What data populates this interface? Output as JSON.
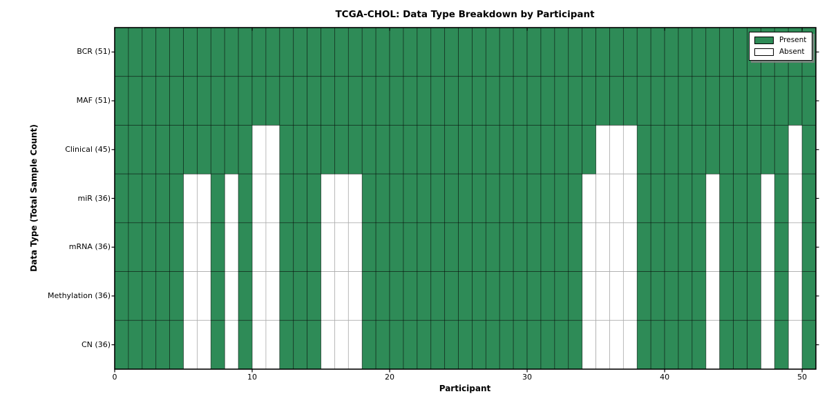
{
  "chart_data": {
    "type": "heatmap",
    "title": "TCGA-CHOL: Data Type Breakdown by Participant",
    "xlabel": "Participant",
    "ylabel": "Data Type (Total Sample Count)",
    "x_ticks": [
      0,
      10,
      20,
      30,
      40,
      50
    ],
    "x_range": [
      0,
      51
    ],
    "n_participants": 51,
    "grid": "per-cell borders",
    "legend_position": "upper right",
    "value_encoding": {
      "present": 1,
      "absent": 0
    },
    "rows": [
      {
        "label": "BCR (51)",
        "data_type": "BCR",
        "present_count": 51,
        "absent_participants": []
      },
      {
        "label": "MAF (51)",
        "data_type": "MAF",
        "present_count": 51,
        "absent_participants": []
      },
      {
        "label": "Clinical (45)",
        "data_type": "Clinical",
        "present_count": 45,
        "absent_participants": [
          10,
          11,
          35,
          36,
          37,
          49
        ]
      },
      {
        "label": "miR (36)",
        "data_type": "miR",
        "present_count": 36,
        "absent_participants": [
          5,
          6,
          8,
          10,
          11,
          15,
          16,
          17,
          34,
          35,
          36,
          37,
          43,
          47,
          49
        ]
      },
      {
        "label": "mRNA (36)",
        "data_type": "mRNA",
        "present_count": 36,
        "absent_participants": [
          5,
          6,
          8,
          10,
          11,
          15,
          16,
          17,
          34,
          35,
          36,
          37,
          43,
          47,
          49
        ]
      },
      {
        "label": "Methylation (36)",
        "data_type": "Methylation",
        "present_count": 36,
        "absent_participants": [
          5,
          6,
          8,
          10,
          11,
          15,
          16,
          17,
          34,
          35,
          36,
          37,
          43,
          47,
          49
        ]
      },
      {
        "label": "CN (36)",
        "data_type": "CN",
        "present_count": 36,
        "absent_participants": [
          5,
          6,
          8,
          10,
          11,
          15,
          16,
          17,
          34,
          35,
          36,
          37,
          43,
          47,
          49
        ]
      }
    ],
    "legend": [
      {
        "label": "Present",
        "color": "#2E8B57"
      },
      {
        "label": "Absent",
        "color": "#FFFFFF"
      }
    ],
    "colors": {
      "present": "#2E8B57",
      "absent": "#FFFFFF",
      "cell_edge_on_present": "rgba(0,0,0,0.55)",
      "cell_edge_on_absent": "#ABABAB",
      "axes_edge": "#000000"
    }
  }
}
